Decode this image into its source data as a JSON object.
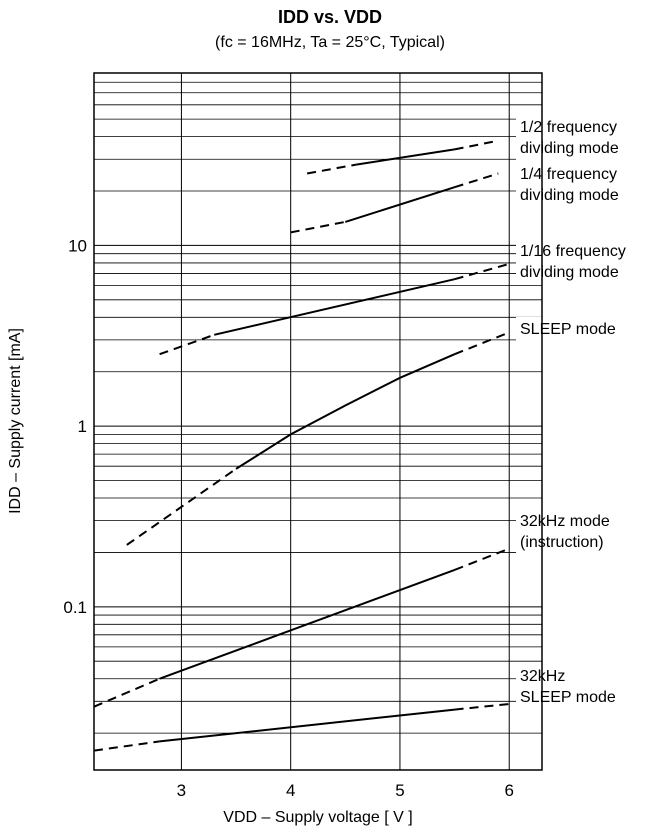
{
  "chart_data": {
    "type": "line",
    "title": "IDD vs. VDD",
    "subtitle": "(fc = 16MHz, Ta = 25°C, Typical)",
    "xlabel": "VDD – Supply voltage [ V ]",
    "ylabel": "IDD – Supply current [mA]",
    "x_scale": "linear",
    "y_scale": "log",
    "xlim": [
      2.2,
      6.3
    ],
    "ylim": [
      0.0125,
      90
    ],
    "x_ticks": [
      3,
      4,
      5,
      6
    ],
    "x_tick_labels": [
      "3",
      "4",
      "5",
      "6"
    ],
    "y_ticks": [
      0.1,
      1,
      10
    ],
    "y_tick_labels": [
      "0.1",
      "1",
      "10"
    ],
    "grid": true,
    "series": [
      {
        "name": "1/2 frequency dividing mode",
        "label_lines": [
          "1/2 frequency",
          "dividing mode"
        ],
        "segments": [
          {
            "style": "dashed",
            "x": [
              4.15,
              4.6
            ],
            "y": [
              25,
              28
            ]
          },
          {
            "style": "solid",
            "x": [
              4.6,
              5.5
            ],
            "y": [
              28,
              34
            ]
          },
          {
            "style": "dashed",
            "x": [
              5.5,
              5.9
            ],
            "y": [
              34,
              38
            ]
          }
        ]
      },
      {
        "name": "1/4 frequency dividing mode",
        "label_lines": [
          "1/4 frequency",
          "dividing mode"
        ],
        "segments": [
          {
            "style": "dashed",
            "x": [
              4.0,
              4.5
            ],
            "y": [
              11.8,
              13.5
            ]
          },
          {
            "style": "solid",
            "x": [
              4.5,
              5.5
            ],
            "y": [
              13.5,
              21
            ]
          },
          {
            "style": "dashed",
            "x": [
              5.5,
              5.9
            ],
            "y": [
              21,
              25
            ]
          }
        ]
      },
      {
        "name": "1/16 frequency dividing mode",
        "label_lines": [
          "1/16 frequency",
          "dividing mode"
        ],
        "segments": [
          {
            "style": "dashed",
            "x": [
              2.8,
              3.3
            ],
            "y": [
              2.5,
              3.2
            ]
          },
          {
            "style": "solid",
            "x": [
              3.3,
              5.5
            ],
            "y": [
              3.2,
              6.5
            ]
          },
          {
            "style": "dashed",
            "x": [
              5.5,
              6.0
            ],
            "y": [
              6.5,
              7.9
            ]
          }
        ]
      },
      {
        "name": "SLEEP mode",
        "label_lines": [
          "SLEEP mode"
        ],
        "segments": [
          {
            "style": "dashed",
            "x": [
              2.5,
              3.5
            ],
            "y": [
              0.22,
              0.58
            ]
          },
          {
            "style": "solid",
            "x": [
              3.5,
              4.0,
              4.5,
              5.0,
              5.5
            ],
            "y": [
              0.58,
              0.9,
              1.3,
              1.85,
              2.5
            ]
          },
          {
            "style": "dashed",
            "x": [
              5.5,
              6.0
            ],
            "y": [
              2.5,
              3.3
            ]
          }
        ]
      },
      {
        "name": "32kHz mode (instruction)",
        "label_lines": [
          "32kHz mode",
          "(instruction)"
        ],
        "segments": [
          {
            "style": "dashed",
            "x": [
              2.2,
              2.8
            ],
            "y": [
              0.028,
              0.04
            ]
          },
          {
            "style": "solid",
            "x": [
              2.8,
              5.5
            ],
            "y": [
              0.04,
              0.16
            ]
          },
          {
            "style": "dashed",
            "x": [
              5.5,
              6.0
            ],
            "y": [
              0.16,
              0.21
            ]
          }
        ]
      },
      {
        "name": "32kHz SLEEP mode",
        "label_lines": [
          "32kHz",
          "SLEEP mode"
        ],
        "segments": [
          {
            "style": "dashed",
            "x": [
              2.2,
              2.8
            ],
            "y": [
              0.016,
              0.018
            ]
          },
          {
            "style": "solid",
            "x": [
              2.8,
              5.5
            ],
            "y": [
              0.018,
              0.027
            ]
          },
          {
            "style": "dashed",
            "x": [
              5.5,
              6.0
            ],
            "y": [
              0.027,
              0.029
            ]
          }
        ]
      }
    ]
  }
}
